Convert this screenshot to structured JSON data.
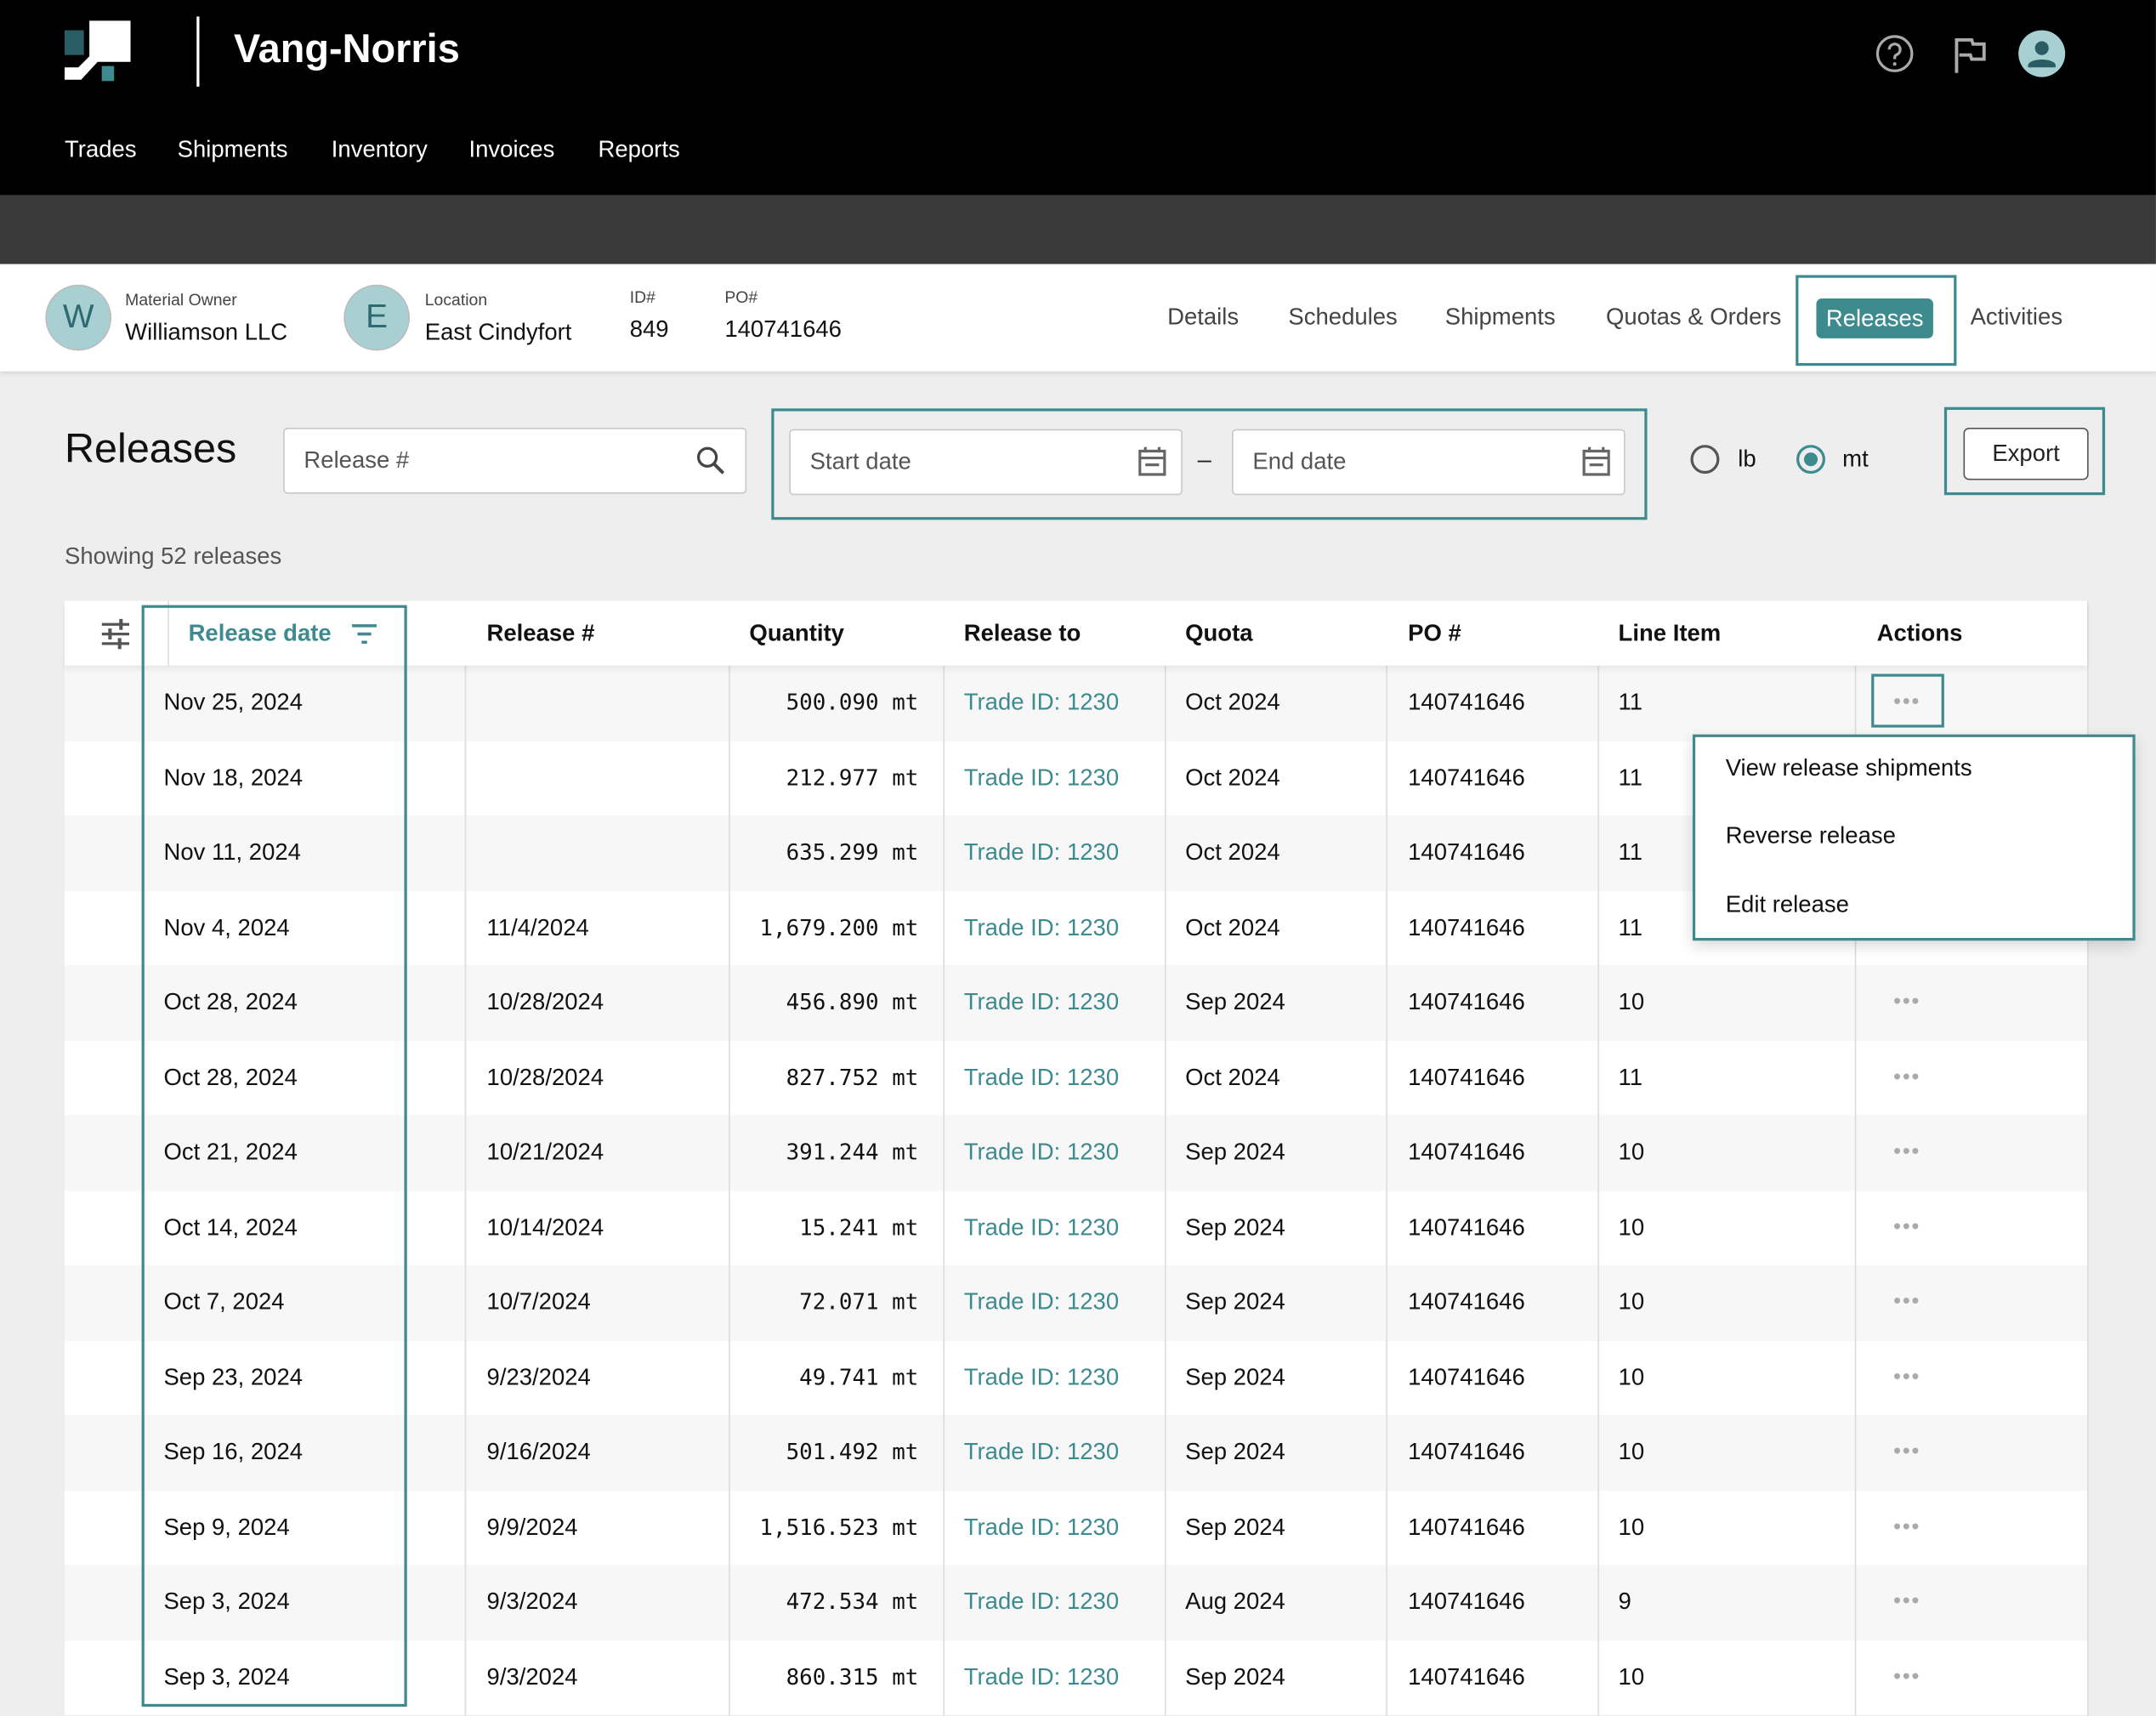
{
  "app": {
    "title": "Vang-Norris",
    "nav": [
      "Trades",
      "Shipments",
      "Inventory",
      "Invoices",
      "Reports"
    ],
    "icons": {
      "help": "help-circle-icon",
      "flag": "flag-icon",
      "user": "user-avatar-icon"
    }
  },
  "info": {
    "owner_label": "Material Owner",
    "owner": "Williamson LLC",
    "owner_initial": "W",
    "location_label": "Location",
    "location": "East Cindyfort",
    "location_initial": "E",
    "id_label": "ID#",
    "id": "849",
    "po_label": "PO#",
    "po": "140741646"
  },
  "tabs": [
    "Details",
    "Schedules",
    "Shipments",
    "Quotas & Orders",
    "Releases",
    "Activities"
  ],
  "active_tab": "Releases",
  "page": {
    "heading": "Releases",
    "search_placeholder": "Release #",
    "start_placeholder": "Start date",
    "end_placeholder": "End date",
    "dash": "–",
    "units": [
      {
        "label": "lb",
        "selected": false
      },
      {
        "label": "mt",
        "selected": true
      }
    ],
    "export": "Export",
    "showing": "Showing 52 releases"
  },
  "table": {
    "headers": [
      "Release date",
      "Release #",
      "Quantity",
      "Release to",
      "Quota",
      "PO #",
      "Line Item",
      "Actions"
    ],
    "rows": [
      [
        "Nov 25, 2024",
        "",
        "500.090 mt",
        "Trade ID: 1230",
        "Oct 2024",
        "140741646",
        "11"
      ],
      [
        "Nov 18, 2024",
        "",
        "212.977 mt",
        "Trade ID: 1230",
        "Oct 2024",
        "140741646",
        "11"
      ],
      [
        "Nov 11, 2024",
        "",
        "635.299 mt",
        "Trade ID: 1230",
        "Oct 2024",
        "140741646",
        "11"
      ],
      [
        "Nov 4, 2024",
        "11/4/2024",
        "1,679.200 mt",
        "Trade ID: 1230",
        "Oct 2024",
        "140741646",
        "11"
      ],
      [
        "Oct 28, 2024",
        "10/28/2024",
        "456.890 mt",
        "Trade ID: 1230",
        "Sep 2024",
        "140741646",
        "10"
      ],
      [
        "Oct 28, 2024",
        "10/28/2024",
        "827.752 mt",
        "Trade ID: 1230",
        "Oct 2024",
        "140741646",
        "11"
      ],
      [
        "Oct 21, 2024",
        "10/21/2024",
        "391.244 mt",
        "Trade ID: 1230",
        "Sep 2024",
        "140741646",
        "10"
      ],
      [
        "Oct 14, 2024",
        "10/14/2024",
        "15.241 mt",
        "Trade ID: 1230",
        "Sep 2024",
        "140741646",
        "10"
      ],
      [
        "Oct 7, 2024",
        "10/7/2024",
        "72.071 mt",
        "Trade ID: 1230",
        "Sep 2024",
        "140741646",
        "10"
      ],
      [
        "Sep 23, 2024",
        "9/23/2024",
        "49.741 mt",
        "Trade ID: 1230",
        "Sep 2024",
        "140741646",
        "10"
      ],
      [
        "Sep 16, 2024",
        "9/16/2024",
        "501.492 mt",
        "Trade ID: 1230",
        "Sep 2024",
        "140741646",
        "10"
      ],
      [
        "Sep 9, 2024",
        "9/9/2024",
        "1,516.523 mt",
        "Trade ID: 1230",
        "Sep 2024",
        "140741646",
        "10"
      ],
      [
        "Sep 3, 2024",
        "9/3/2024",
        "472.534 mt",
        "Trade ID: 1230",
        "Aug 2024",
        "140741646",
        "9"
      ],
      [
        "Sep 3, 2024",
        "9/3/2024",
        "860.315 mt",
        "Trade ID: 1230",
        "Sep 2024",
        "140741646",
        "10"
      ]
    ],
    "actions_label": "•••"
  },
  "menu": [
    "View release shipments",
    "Reverse release",
    "Edit release"
  ],
  "colors": {
    "accent": "#3d8a8f",
    "topbar": "#000000",
    "band": "#3a3a3a",
    "avatar": "#a8d0d3"
  }
}
